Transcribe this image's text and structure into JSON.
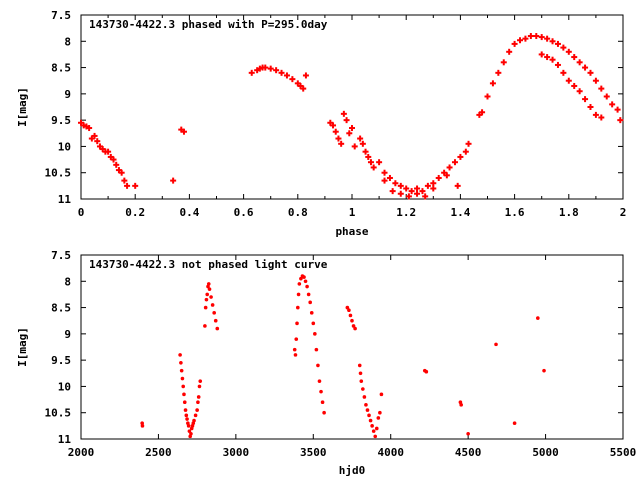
{
  "chart_data": [
    {
      "type": "scatter",
      "title": "143730-4422.3 phased with P=295.0day",
      "xlabel": "phase",
      "ylabel": "I[mag]",
      "xlim": [
        0,
        2
      ],
      "ylim": [
        11,
        7.5
      ],
      "y_inverted": true,
      "grid": false,
      "legend": "none",
      "marker": "plus",
      "color": "#ff0000",
      "x_ticks": [
        "0",
        "0.2",
        "0.4",
        "0.6",
        "0.8",
        "1",
        "1.2",
        "1.4",
        "1.6",
        "1.8",
        "2"
      ],
      "y_ticks": [
        "7.5",
        "8",
        "8.5",
        "9",
        "9.5",
        "10",
        "10.5",
        "11"
      ],
      "series": [
        {
          "points": [
            [
              0.0,
              9.55
            ],
            [
              0.01,
              9.6
            ],
            [
              0.02,
              9.62
            ],
            [
              0.03,
              9.65
            ],
            [
              0.04,
              9.85
            ],
            [
              0.05,
              9.8
            ],
            [
              0.06,
              9.9
            ],
            [
              0.07,
              10.0
            ],
            [
              0.08,
              10.05
            ],
            [
              0.09,
              10.1
            ],
            [
              0.1,
              10.1
            ],
            [
              0.11,
              10.2
            ],
            [
              0.12,
              10.25
            ],
            [
              0.13,
              10.35
            ],
            [
              0.14,
              10.45
            ],
            [
              0.15,
              10.5
            ],
            [
              0.16,
              10.65
            ],
            [
              0.17,
              10.75
            ],
            [
              0.2,
              10.75
            ],
            [
              0.34,
              10.65
            ],
            [
              0.37,
              9.68
            ],
            [
              0.38,
              9.72
            ],
            [
              0.63,
              8.6
            ],
            [
              0.65,
              8.55
            ],
            [
              0.66,
              8.52
            ],
            [
              0.67,
              8.5
            ],
            [
              0.68,
              8.5
            ],
            [
              0.7,
              8.52
            ],
            [
              0.72,
              8.55
            ],
            [
              0.74,
              8.6
            ],
            [
              0.76,
              8.65
            ],
            [
              0.78,
              8.72
            ],
            [
              0.8,
              8.8
            ],
            [
              0.81,
              8.85
            ],
            [
              0.82,
              8.9
            ],
            [
              0.83,
              8.65
            ],
            [
              0.92,
              9.55
            ],
            [
              0.93,
              9.6
            ],
            [
              0.94,
              9.72
            ],
            [
              0.95,
              9.85
            ],
            [
              0.96,
              9.95
            ],
            [
              0.97,
              9.38
            ],
            [
              0.98,
              9.5
            ],
            [
              0.99,
              9.75
            ],
            [
              1.0,
              9.65
            ],
            [
              1.01,
              10.0
            ],
            [
              1.03,
              9.85
            ],
            [
              1.04,
              9.95
            ],
            [
              1.05,
              10.1
            ],
            [
              1.06,
              10.2
            ],
            [
              1.07,
              10.3
            ],
            [
              1.08,
              10.4
            ],
            [
              1.1,
              10.3
            ],
            [
              1.12,
              10.5
            ],
            [
              1.14,
              10.6
            ],
            [
              1.16,
              10.7
            ],
            [
              1.18,
              10.75
            ],
            [
              1.2,
              10.8
            ],
            [
              1.22,
              10.85
            ],
            [
              1.24,
              10.9
            ],
            [
              1.26,
              10.85
            ],
            [
              1.28,
              10.75
            ],
            [
              1.3,
              10.8
            ],
            [
              1.32,
              10.6
            ],
            [
              1.34,
              10.5
            ],
            [
              1.36,
              10.4
            ],
            [
              1.38,
              10.3
            ],
            [
              1.4,
              10.2
            ],
            [
              1.42,
              10.1
            ],
            [
              1.43,
              9.95
            ],
            [
              1.12,
              10.65
            ],
            [
              1.15,
              10.85
            ],
            [
              1.18,
              10.9
            ],
            [
              1.21,
              10.95
            ],
            [
              1.24,
              10.8
            ],
            [
              1.27,
              10.95
            ],
            [
              1.3,
              10.7
            ],
            [
              1.35,
              10.55
            ],
            [
              1.39,
              10.75
            ],
            [
              1.47,
              9.4
            ],
            [
              1.48,
              9.35
            ],
            [
              1.5,
              9.05
            ],
            [
              1.52,
              8.8
            ],
            [
              1.54,
              8.6
            ],
            [
              1.56,
              8.4
            ],
            [
              1.58,
              8.2
            ],
            [
              1.6,
              8.05
            ],
            [
              1.62,
              7.98
            ],
            [
              1.64,
              7.95
            ],
            [
              1.66,
              7.9
            ],
            [
              1.68,
              7.9
            ],
            [
              1.7,
              7.92
            ],
            [
              1.72,
              7.95
            ],
            [
              1.74,
              8.0
            ],
            [
              1.76,
              8.05
            ],
            [
              1.78,
              8.12
            ],
            [
              1.8,
              8.2
            ],
            [
              1.82,
              8.3
            ],
            [
              1.84,
              8.4
            ],
            [
              1.86,
              8.5
            ],
            [
              1.88,
              8.6
            ],
            [
              1.9,
              8.75
            ],
            [
              1.92,
              8.9
            ],
            [
              1.94,
              9.05
            ],
            [
              1.96,
              9.2
            ],
            [
              1.98,
              9.3
            ],
            [
              1.99,
              9.5
            ],
            [
              1.7,
              8.25
            ],
            [
              1.72,
              8.3
            ],
            [
              1.74,
              8.35
            ],
            [
              1.76,
              8.45
            ],
            [
              1.78,
              8.6
            ],
            [
              1.8,
              8.75
            ],
            [
              1.82,
              8.85
            ],
            [
              1.84,
              8.95
            ],
            [
              1.86,
              9.1
            ],
            [
              1.88,
              9.25
            ],
            [
              1.9,
              9.4
            ],
            [
              1.92,
              9.45
            ]
          ]
        }
      ]
    },
    {
      "type": "scatter",
      "title": "143730-4422.3 not phased light curve",
      "xlabel": "hjd0",
      "ylabel": "I[mag]",
      "xlim": [
        2000,
        5500
      ],
      "ylim": [
        11,
        7.5
      ],
      "y_inverted": true,
      "grid": false,
      "legend": "none",
      "marker": "dot",
      "color": "#ff0000",
      "x_ticks": [
        "2000",
        "2500",
        "3000",
        "3500",
        "4000",
        "4500",
        "5000",
        "5500"
      ],
      "y_ticks": [
        "7.5",
        "8",
        "8.5",
        "9",
        "9.5",
        "10",
        "10.5",
        "11"
      ],
      "series": [
        {
          "points": [
            [
              2395,
              10.7
            ],
            [
              2397,
              10.75
            ],
            [
              2640,
              9.4
            ],
            [
              2645,
              9.55
            ],
            [
              2650,
              9.7
            ],
            [
              2655,
              9.85
            ],
            [
              2660,
              10.0
            ],
            [
              2665,
              10.15
            ],
            [
              2670,
              10.3
            ],
            [
              2675,
              10.45
            ],
            [
              2680,
              10.55
            ],
            [
              2685,
              10.62
            ],
            [
              2690,
              10.7
            ],
            [
              2695,
              10.75
            ],
            [
              2700,
              10.85
            ],
            [
              2705,
              10.95
            ],
            [
              2710,
              10.9
            ],
            [
              2715,
              10.8
            ],
            [
              2720,
              10.75
            ],
            [
              2725,
              10.7
            ],
            [
              2730,
              10.65
            ],
            [
              2740,
              10.55
            ],
            [
              2750,
              10.45
            ],
            [
              2755,
              10.3
            ],
            [
              2760,
              10.2
            ],
            [
              2765,
              10.0
            ],
            [
              2770,
              9.9
            ],
            [
              2800,
              8.85
            ],
            [
              2805,
              8.5
            ],
            [
              2810,
              8.35
            ],
            [
              2815,
              8.25
            ],
            [
              2820,
              8.1
            ],
            [
              2825,
              8.05
            ],
            [
              2830,
              8.15
            ],
            [
              2840,
              8.3
            ],
            [
              2850,
              8.45
            ],
            [
              2860,
              8.6
            ],
            [
              2870,
              8.75
            ],
            [
              2880,
              8.9
            ],
            [
              3380,
              9.3
            ],
            [
              3385,
              9.4
            ],
            [
              3390,
              9.1
            ],
            [
              3395,
              8.8
            ],
            [
              3400,
              8.5
            ],
            [
              3405,
              8.25
            ],
            [
              3410,
              8.05
            ],
            [
              3420,
              7.95
            ],
            [
              3430,
              7.9
            ],
            [
              3440,
              7.92
            ],
            [
              3450,
              8.0
            ],
            [
              3460,
              8.1
            ],
            [
              3470,
              8.25
            ],
            [
              3480,
              8.4
            ],
            [
              3490,
              8.6
            ],
            [
              3500,
              8.8
            ],
            [
              3510,
              9.0
            ],
            [
              3520,
              9.3
            ],
            [
              3530,
              9.6
            ],
            [
              3540,
              9.9
            ],
            [
              3550,
              10.1
            ],
            [
              3560,
              10.3
            ],
            [
              3570,
              10.5
            ],
            [
              3720,
              8.5
            ],
            [
              3730,
              8.55
            ],
            [
              3740,
              8.65
            ],
            [
              3750,
              8.75
            ],
            [
              3760,
              8.85
            ],
            [
              3770,
              8.9
            ],
            [
              3800,
              9.6
            ],
            [
              3805,
              9.75
            ],
            [
              3810,
              9.9
            ],
            [
              3820,
              10.05
            ],
            [
              3830,
              10.2
            ],
            [
              3840,
              10.35
            ],
            [
              3850,
              10.45
            ],
            [
              3860,
              10.55
            ],
            [
              3870,
              10.65
            ],
            [
              3880,
              10.75
            ],
            [
              3890,
              10.85
            ],
            [
              3900,
              10.95
            ],
            [
              3910,
              10.8
            ],
            [
              3920,
              10.6
            ],
            [
              3930,
              10.5
            ],
            [
              3940,
              10.15
            ],
            [
              4220,
              9.7
            ],
            [
              4230,
              9.72
            ],
            [
              4450,
              10.3
            ],
            [
              4455,
              10.35
            ],
            [
              4500,
              10.9
            ],
            [
              4680,
              9.2
            ],
            [
              4800,
              10.7
            ],
            [
              4950,
              8.7
            ],
            [
              4990,
              9.7
            ]
          ]
        }
      ]
    }
  ]
}
